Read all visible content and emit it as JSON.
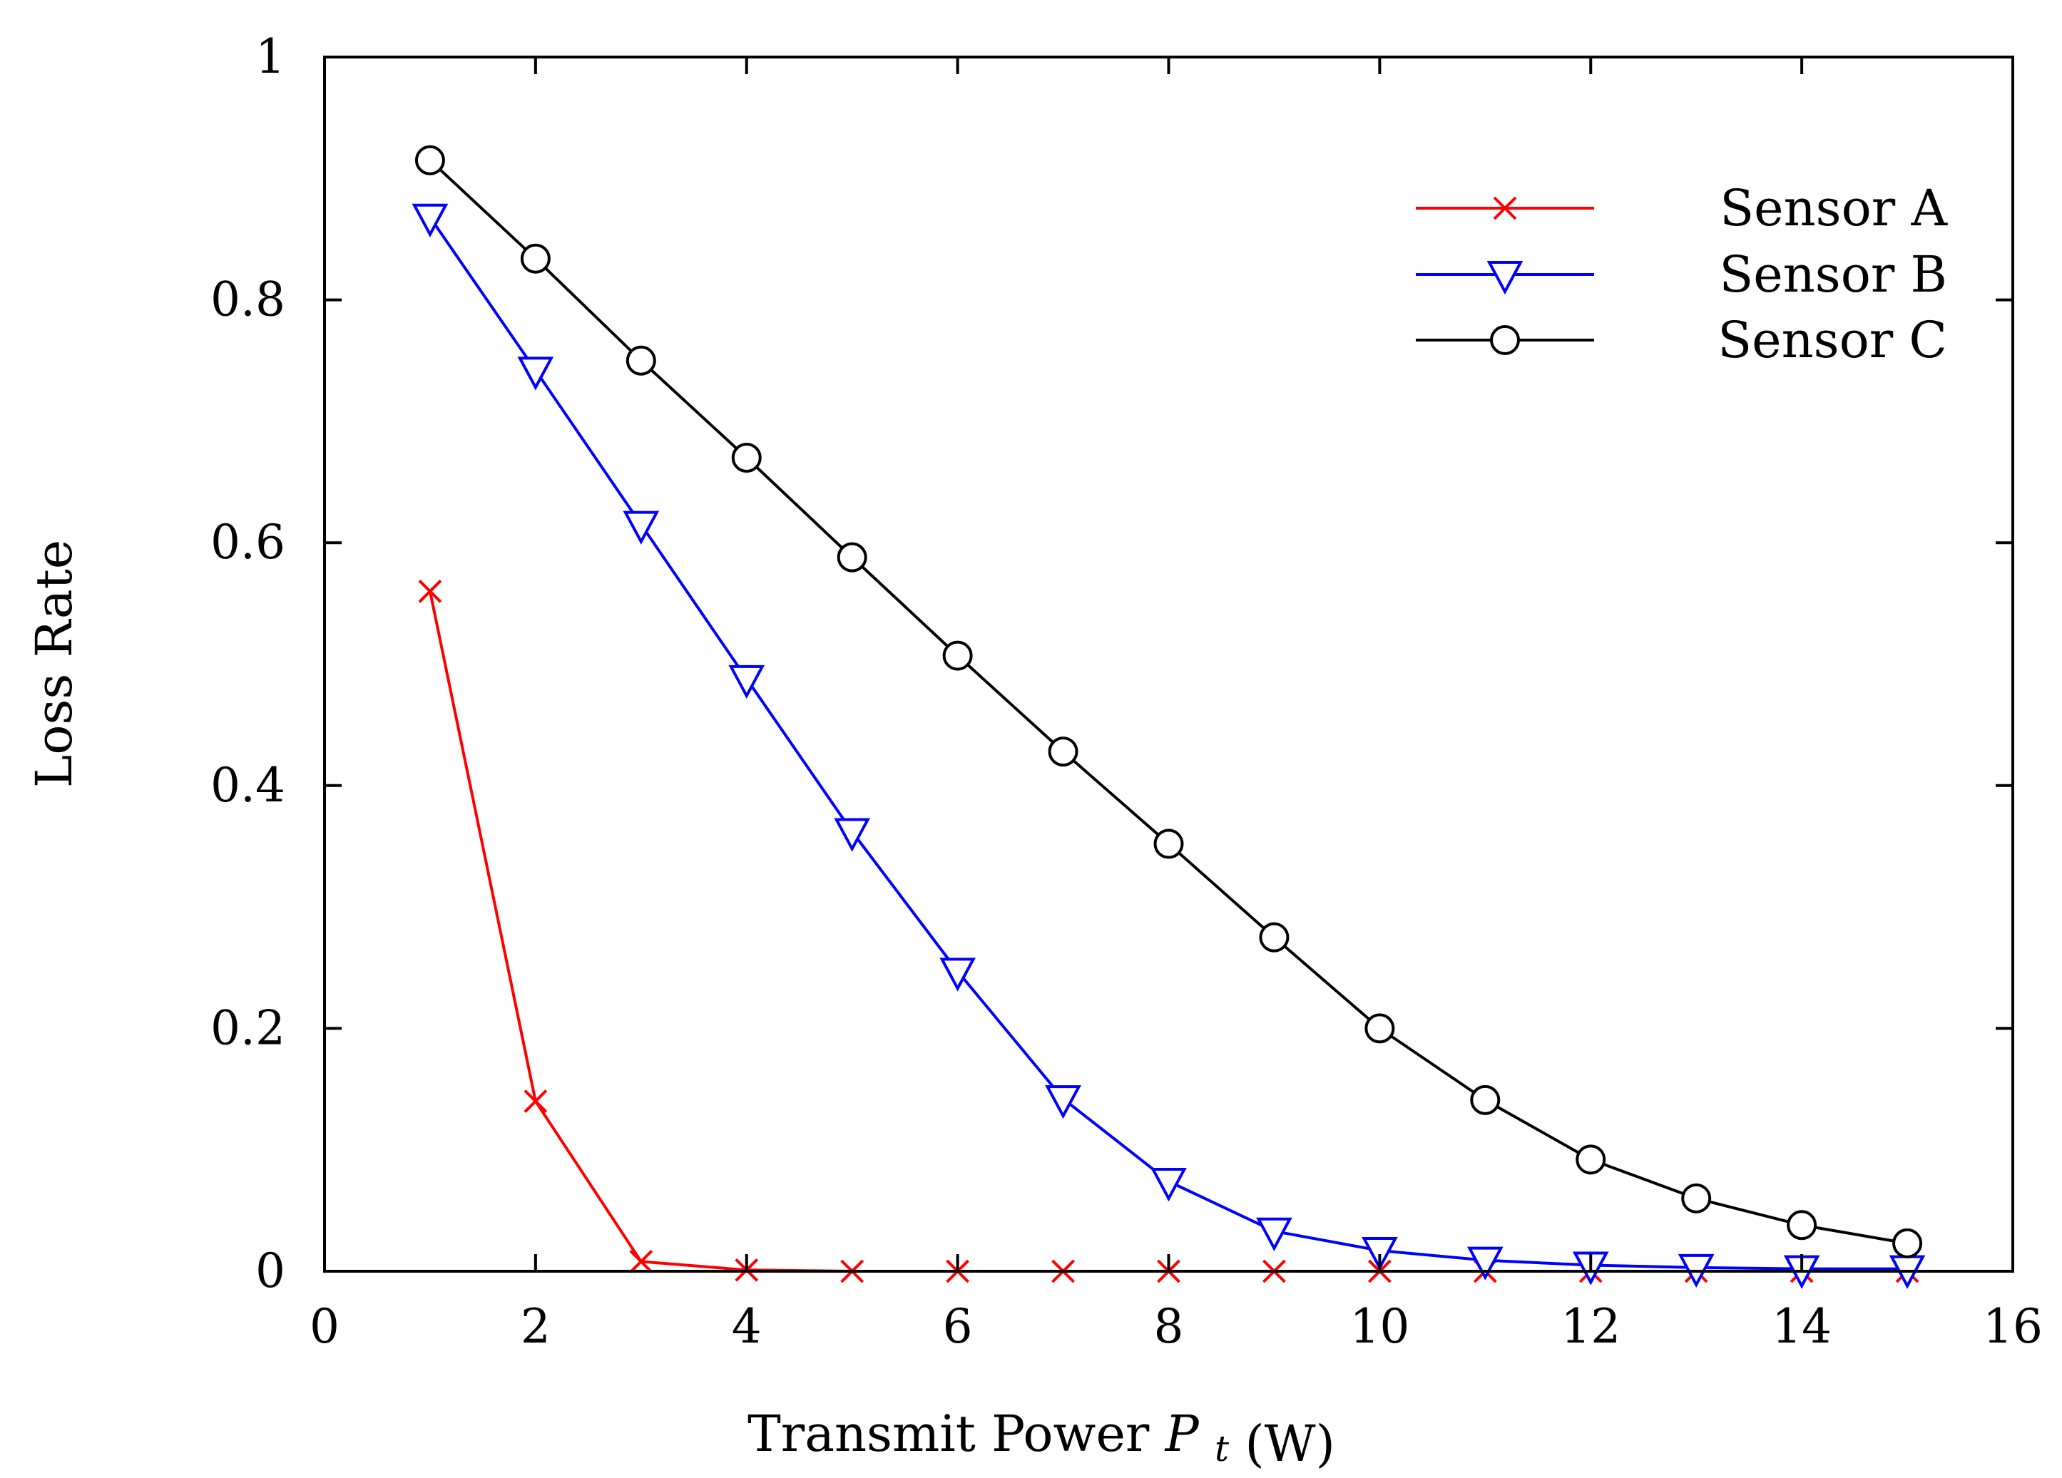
{
  "chart_data": {
    "type": "line",
    "title": "",
    "xlabel": "Transmit Power",
    "xlabel_symbol": "P",
    "xlabel_subscript": "t",
    "xlabel_unit": "(W)",
    "ylabel": "Loss Rate",
    "xlim": [
      0,
      16
    ],
    "ylim": [
      0,
      1
    ],
    "x_ticks": [
      0,
      2,
      4,
      6,
      8,
      10,
      12,
      14,
      16
    ],
    "y_ticks": [
      0,
      0.2,
      0.4,
      0.6,
      0.8,
      1
    ],
    "x_tick_labels": [
      "0",
      "2",
      "4",
      "6",
      "8",
      "10",
      "12",
      "14",
      "16"
    ],
    "y_tick_labels": [
      "0",
      "0.2",
      "0.4",
      "0.6",
      "0.8",
      "1"
    ],
    "grid": false,
    "legend_position": "top-right",
    "x": [
      1,
      2,
      3,
      4,
      5,
      6,
      7,
      8,
      9,
      10,
      11,
      12,
      13,
      14,
      15
    ],
    "series": [
      {
        "name": "Sensor A",
        "color": "#ff0000",
        "marker": "x",
        "values": [
          0.56,
          0.14,
          0.008,
          0.001,
          0.0,
          0.0,
          0.0,
          0.0,
          0.0,
          0.0,
          0.0,
          0.0,
          0.0,
          0.0,
          0.0
        ]
      },
      {
        "name": "Sensor B",
        "color": "#0000ff",
        "marker": "triangle-down",
        "values": [
          0.868,
          0.742,
          0.615,
          0.488,
          0.362,
          0.247,
          0.142,
          0.074,
          0.033,
          0.017,
          0.009,
          0.005,
          0.003,
          0.002,
          0.002
        ]
      },
      {
        "name": "Sensor C",
        "color": "#000000",
        "marker": "circle",
        "values": [
          0.915,
          0.834,
          0.75,
          0.67,
          0.588,
          0.507,
          0.428,
          0.352,
          0.275,
          0.2,
          0.141,
          0.092,
          0.06,
          0.038,
          0.023
        ]
      }
    ]
  }
}
